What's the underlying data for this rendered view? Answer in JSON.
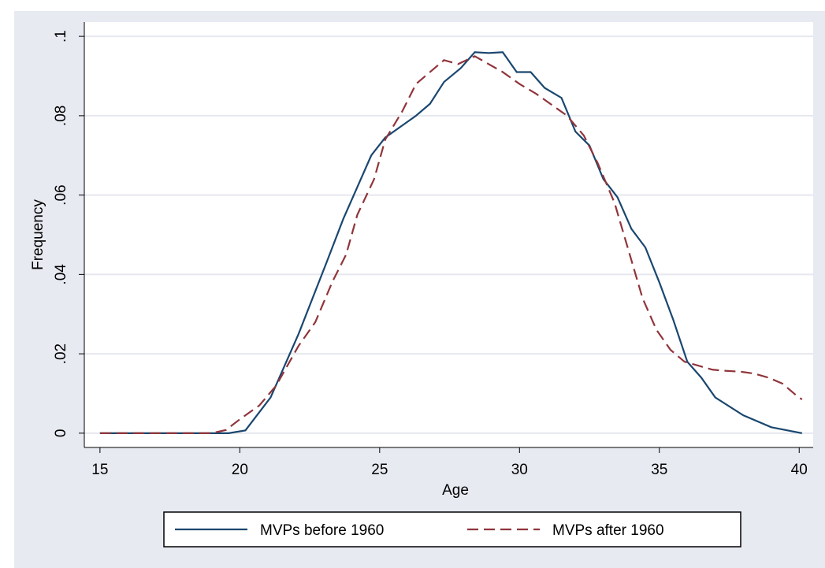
{
  "chart_data": {
    "type": "line",
    "x_label": "Age",
    "y_label": "Frequency",
    "xlim": [
      14.44,
      40.5
    ],
    "ylim": [
      -0.0036,
      0.1036
    ],
    "xticks": [
      15,
      20,
      25,
      30,
      35,
      40
    ],
    "yticks": [
      0,
      {
        "value": 0.02,
        "label": ".02"
      },
      {
        "value": 0.04,
        "label": ".04"
      },
      {
        "value": 0.06,
        "label": ".06"
      },
      {
        "value": 0.08,
        "label": ".08"
      },
      {
        "value": 0.1,
        "label": ".1"
      }
    ],
    "grid": true,
    "legend": "bottom",
    "series": [
      {
        "name": "MVPs before 1960",
        "color": "#1a476f",
        "dash": "solid",
        "x": [
          15,
          19.6,
          20.2,
          21.1,
          22.1,
          23.1,
          23.7,
          24.2,
          24.7,
          25.2,
          25.7,
          26.3,
          26.8,
          27.3,
          27.9,
          28.4,
          28.9,
          29.4,
          29.9,
          30.4,
          30.9,
          31.5,
          32,
          32.5,
          33,
          33.5,
          34,
          34.5,
          35,
          35.5,
          36,
          36.5,
          37,
          38,
          39,
          40.1
        ],
        "values": [
          0,
          0,
          0.0007,
          0.009,
          0.025,
          0.043,
          0.054,
          0.062,
          0.07,
          0.0745,
          0.077,
          0.08,
          0.083,
          0.0885,
          0.092,
          0.096,
          0.0958,
          0.096,
          0.091,
          0.091,
          0.087,
          0.0845,
          0.076,
          0.0725,
          0.064,
          0.0595,
          0.0515,
          0.0468,
          0.038,
          0.0285,
          0.018,
          0.014,
          0.009,
          0.0045,
          0.0015,
          0
        ]
      },
      {
        "name": "MVPs after 1960",
        "color": "#90353b",
        "dash": "dashed",
        "x": [
          15,
          19,
          19.5,
          20,
          20.7,
          21.3,
          22.1,
          22.7,
          23.3,
          23.8,
          24.2,
          24.8,
          25.2,
          25.8,
          26.3,
          26.8,
          27.3,
          27.8,
          28.4,
          28.9,
          29.4,
          30,
          30.6,
          31.1,
          31.7,
          32.3,
          32.8,
          33.4,
          33.9,
          34.4,
          34.9,
          35.4,
          35.9,
          36.4,
          36.9,
          37.4,
          37.9,
          38.4,
          38.9,
          39.4,
          39.9,
          40.1
        ],
        "values": [
          0,
          0,
          0.0008,
          0.0035,
          0.007,
          0.012,
          0.022,
          0.028,
          0.038,
          0.045,
          0.055,
          0.064,
          0.074,
          0.081,
          0.088,
          0.091,
          0.094,
          0.093,
          0.095,
          0.093,
          0.091,
          0.088,
          0.0855,
          0.083,
          0.08,
          0.075,
          0.068,
          0.058,
          0.046,
          0.034,
          0.026,
          0.021,
          0.018,
          0.017,
          0.016,
          0.0157,
          0.0155,
          0.015,
          0.014,
          0.0125,
          0.0095,
          0.0085
        ]
      }
    ]
  }
}
